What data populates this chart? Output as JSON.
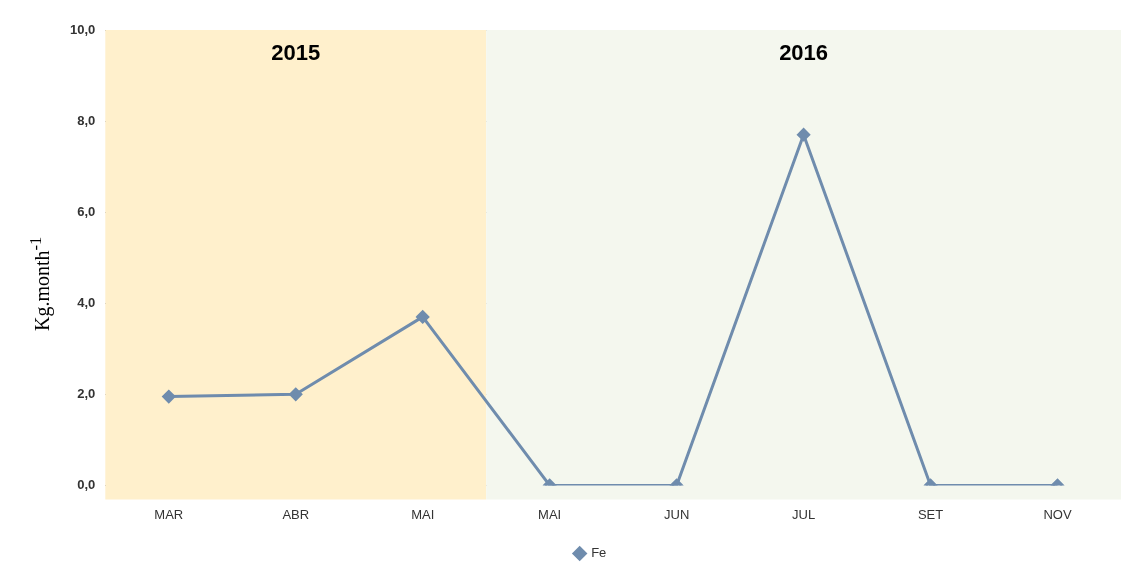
{
  "chart_data": {
    "type": "line",
    "ylabel": "Kg.month$^{-1}$",
    "categories": [
      "MAR",
      "ABR",
      "MAI",
      "MAI",
      "JUN",
      "JUL",
      "SET",
      "NOV"
    ],
    "series": [
      {
        "name": "Fe",
        "color": "#6f8cad",
        "values": [
          1.95,
          2.0,
          3.7,
          0,
          0,
          7.7,
          0,
          0
        ]
      }
    ],
    "ylim": [
      0,
      10
    ],
    "yticks": [
      {
        "value": 0,
        "label": "0,0"
      },
      {
        "value": 2,
        "label": "2,0"
      },
      {
        "value": 4,
        "label": "4,0"
      },
      {
        "value": 6,
        "label": "6,0"
      },
      {
        "value": 8,
        "label": "8,0"
      },
      {
        "value": 10,
        "label": "10,0"
      }
    ],
    "bands": [
      {
        "axis": "x",
        "from": "MAR",
        "to": "MAI",
        "label": "2015",
        "color": "#fff0cc"
      },
      {
        "axis": "x",
        "from": "MAI",
        "to": "NOV",
        "label": "2016",
        "color": "#f4f7ee"
      }
    ],
    "grid": "y",
    "legend": "bottom",
    "marker": "diamond",
    "line_style": "solid"
  }
}
